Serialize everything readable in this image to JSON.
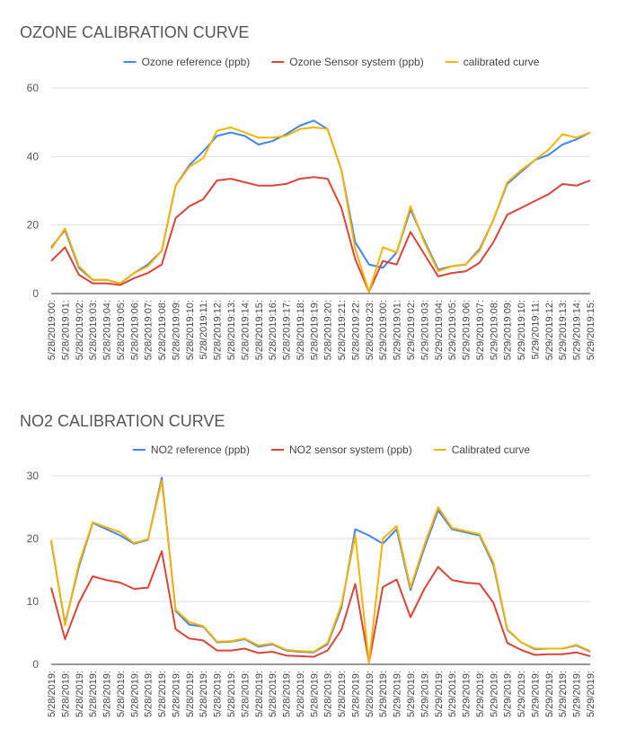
{
  "chart_data": [
    {
      "type": "line",
      "title": "OZONE CALIBRATION CURVE",
      "categories": [
        "5/28/2019:00:",
        "5/28/2019:01:",
        "5/28/2019:02:",
        "5/28/2019:03:",
        "5/28/2019:04:",
        "5/28/2019:05:",
        "5/28/2019:06:",
        "5/28/2019:07:",
        "5/28/2019:08:",
        "5/28/2019:09:",
        "5/28/2019:10:",
        "5/28/2019:11:",
        "5/28/2019:12:",
        "5/28/2019:13:",
        "5/28/2019:14:",
        "5/28/2019:15:",
        "5/28/2019:16:",
        "5/28/2019:17:",
        "5/28/2019:18:",
        "5/28/2019:19:",
        "5/28/2019:20:",
        "5/28/2019:21:",
        "5/28/2019:22:",
        "5/28/2019:23:",
        "5/29/2019:00:",
        "5/29/2019:01:",
        "5/29/2019:02:",
        "5/29/2019:03:",
        "5/29/2019:04:",
        "5/29/2019:05:",
        "5/29/2019:06:",
        "5/29/2019:07:",
        "5/29/2019:08:",
        "5/29/2019:09:",
        "5/29/2019:10:",
        "5/29/2019:11:",
        "5/29/2019:12:",
        "5/29/2019:13:",
        "5/29/2019:14:",
        "5/29/2019:15:"
      ],
      "series": [
        {
          "name": "Ozone reference (ppb)",
          "color": "#4285f4",
          "values": [
            13.5,
            18.5,
            7.5,
            4,
            4,
            3,
            6,
            8.5,
            12.5,
            31.5,
            37.5,
            41.5,
            46,
            47,
            46,
            43.5,
            44.5,
            46.5,
            49,
            50.5,
            48,
            36,
            15,
            8.5,
            7.5,
            12,
            24.5,
            15.5,
            7,
            8,
            8.5,
            13,
            21.5,
            32,
            35.5,
            39,
            40.5,
            43.5,
            45,
            47
          ]
        },
        {
          "name": "Ozone Sensor system (ppb)",
          "color": "#db4437",
          "values": [
            9.5,
            13.5,
            5.5,
            3,
            3,
            2.5,
            4.5,
            6,
            8.5,
            22,
            25.5,
            27.5,
            33,
            33.5,
            32.5,
            31.5,
            31.5,
            32,
            33.5,
            34,
            33.5,
            25,
            10,
            0.5,
            9.5,
            8.5,
            18,
            11.5,
            5,
            6,
            6.5,
            9,
            15,
            23,
            25,
            27,
            29,
            32,
            31.5,
            33
          ]
        },
        {
          "name": "calibrated curve",
          "color": "#f4b400",
          "values": [
            13,
            19,
            8,
            4,
            4,
            3,
            6,
            8,
            12.5,
            31.5,
            37,
            39.5,
            47.5,
            48.5,
            47,
            45.5,
            45.5,
            46,
            48,
            48.5,
            48,
            36,
            13,
            0.5,
            13.5,
            12,
            25.5,
            15,
            6.5,
            8,
            8.5,
            12.5,
            21.5,
            32.5,
            36,
            39,
            42,
            46.5,
            45.5,
            47
          ]
        }
      ],
      "ylim": [
        0,
        60
      ],
      "yticks": [
        0,
        20,
        40,
        60
      ],
      "grid": true,
      "legend": "top"
    },
    {
      "type": "line",
      "title": "NO2 CALIBRATION CURVE",
      "categories": [
        "5/28/2019:",
        "5/28/2019:",
        "5/28/2019:",
        "5/28/2019:",
        "5/28/2019:",
        "5/28/2019:",
        "5/28/2019:",
        "5/28/2019:",
        "5/28/2019:",
        "5/28/2019:",
        "5/28/2019:",
        "5/28/2019:",
        "5/28/2019:",
        "5/28/2019:",
        "5/28/2019:",
        "5/28/2019:",
        "5/28/2019:",
        "5/28/2019:",
        "5/28/2019:",
        "5/28/2019:",
        "5/28/2019:",
        "5/28/2019:",
        "5/28/2019:",
        "5/28/2019:",
        "5/29/2019:",
        "5/29/2019:",
        "5/29/2019:",
        "5/29/2019:",
        "5/29/2019:",
        "5/29/2019:",
        "5/29/2019:",
        "5/29/2019:",
        "5/29/2019:",
        "5/29/2019:",
        "5/29/2019:",
        "5/29/2019:",
        "5/29/2019:",
        "5/29/2019:",
        "5/29/2019:",
        "5/29/2019:"
      ],
      "series": [
        {
          "name": "NO2 reference (ppb)",
          "color": "#4285f4",
          "values": [
            19.5,
            6.5,
            15.5,
            22.5,
            21.5,
            20.5,
            19.2,
            19.8,
            29.7,
            8.5,
            6.3,
            6,
            3.5,
            3.6,
            4,
            2.8,
            3.2,
            2.2,
            2,
            1.9,
            3.2,
            9,
            21.5,
            20.5,
            19.2,
            21.5,
            11.8,
            18.5,
            24.5,
            21.5,
            21,
            20.5,
            15.8,
            5.5,
            3.5,
            2.4,
            2.5,
            2.5,
            3,
            2
          ]
        },
        {
          "name": "NO2 sensor system (ppb)",
          "color": "#db4437",
          "values": [
            12.2,
            4,
            9.8,
            14,
            13.4,
            13,
            12,
            12.2,
            18,
            5.6,
            4.1,
            3.8,
            2.2,
            2.2,
            2.5,
            1.8,
            2,
            1.4,
            1.3,
            1.2,
            2.2,
            5.5,
            12.8,
            0.3,
            12.3,
            13.5,
            7.5,
            12,
            15.5,
            13.4,
            13,
            12.8,
            9.8,
            3.4,
            2.3,
            1.5,
            1.6,
            1.6,
            1.9,
            1.3
          ]
        },
        {
          "name": "Calibrated curve",
          "color": "#f4b400",
          "values": [
            19.8,
            6.2,
            16,
            22.6,
            21.8,
            21,
            19.3,
            19.9,
            29.2,
            8.7,
            6.7,
            6.1,
            3.6,
            3.7,
            4.1,
            3,
            3.3,
            2.3,
            2.1,
            2,
            3.4,
            9.5,
            20.5,
            0.3,
            20,
            22,
            12.2,
            19,
            25,
            21.7,
            21.2,
            20.7,
            16.2,
            5.6,
            3.5,
            2.5,
            2.5,
            2.5,
            3.1,
            2.1
          ]
        }
      ],
      "ylim": [
        0,
        30
      ],
      "yticks": [
        0,
        10,
        20,
        30
      ],
      "grid": true,
      "legend": "top"
    }
  ]
}
